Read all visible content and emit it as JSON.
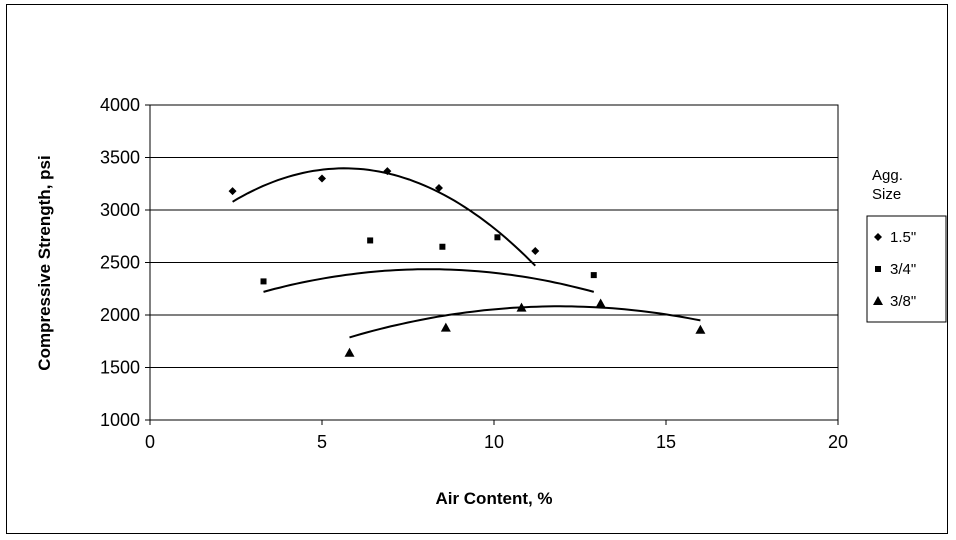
{
  "chart_data": {
    "type": "scatter",
    "title": "",
    "xlabel": "Air Content, %",
    "ylabel": "Compressive Strength, psi",
    "xlim": [
      0,
      20
    ],
    "ylim": [
      1000,
      4000
    ],
    "xticks": [
      0,
      5,
      10,
      15,
      20
    ],
    "yticks": [
      1000,
      1500,
      2000,
      2500,
      3000,
      3500,
      4000
    ],
    "grid": "horizontal",
    "legend": {
      "title": "Agg. Size",
      "placement": "right"
    },
    "trendline": "polynomial",
    "series": [
      {
        "name": "1.5\"",
        "marker": "diamond",
        "points": [
          [
            2.4,
            3180
          ],
          [
            5.0,
            3300
          ],
          [
            6.9,
            3370
          ],
          [
            8.4,
            3210
          ],
          [
            11.2,
            2610
          ]
        ],
        "trend": [
          -30.12,
          340.4,
          2435
        ]
      },
      {
        "name": "3/4\"",
        "marker": "square",
        "points": [
          [
            3.3,
            2320
          ],
          [
            6.4,
            2710
          ],
          [
            8.5,
            2650
          ],
          [
            10.1,
            2740
          ],
          [
            12.9,
            2380
          ]
        ],
        "trend": [
          -9.36,
          151.6,
          1822
        ]
      },
      {
        "name": "3/8\"",
        "marker": "triangle",
        "points": [
          [
            5.8,
            1640
          ],
          [
            8.6,
            1880
          ],
          [
            10.8,
            2070
          ],
          [
            13.1,
            2110
          ],
          [
            16.0,
            1860
          ]
        ],
        "trend": [
          -7.96,
          189.4,
          956
        ]
      }
    ]
  }
}
